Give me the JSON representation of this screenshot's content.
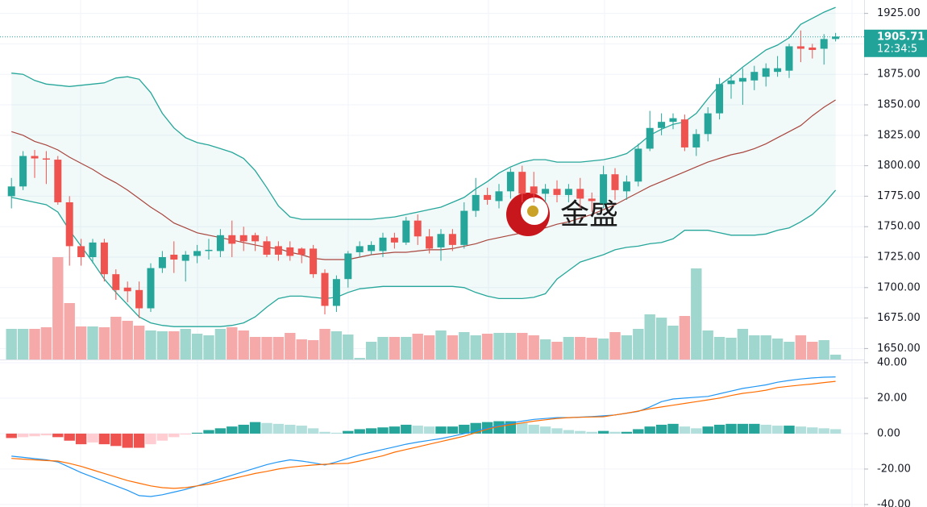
{
  "chart_data": {
    "type": "candlestick",
    "watermark": "金盛",
    "up_color": "#26a69a",
    "down_color": "#ef5350",
    "open": [
      1775,
      1783,
      1808,
      1806,
      1805,
      1770,
      1734,
      1725,
      1737,
      1711,
      1700,
      1698,
      1683,
      1716,
      1727,
      1722,
      1726,
      1730,
      1730,
      1743,
      1743,
      1743,
      1738,
      1734,
      1733,
      1732,
      1732,
      1712,
      1685,
      1707,
      1729,
      1730,
      1730,
      1741,
      1737,
      1755,
      1742,
      1733,
      1744,
      1735,
      1763,
      1776,
      1771,
      1779,
      1795,
      1783,
      1777,
      1781,
      1776,
      1781,
      1773,
      1769,
      1793,
      1779,
      1787,
      1814,
      1831,
      1836,
      1838,
      1815,
      1826,
      1843,
      1867,
      1869,
      1870,
      1873,
      1877,
      1878,
      1898,
      1897,
      1896,
      1904
    ],
    "high": [
      1790,
      1812,
      1813,
      1812,
      1808,
      1775,
      1740,
      1740,
      1740,
      1715,
      1705,
      1705,
      1720,
      1730,
      1738,
      1730,
      1735,
      1740,
      1748,
      1755,
      1750,
      1745,
      1742,
      1738,
      1738,
      1733,
      1735,
      1715,
      1710,
      1730,
      1738,
      1738,
      1745,
      1745,
      1758,
      1760,
      1748,
      1748,
      1748,
      1770,
      1790,
      1782,
      1785,
      1798,
      1800,
      1795,
      1785,
      1788,
      1785,
      1790,
      1778,
      1800,
      1798,
      1792,
      1818,
      1845,
      1843,
      1843,
      1842,
      1830,
      1848,
      1872,
      1875,
      1880,
      1882,
      1884,
      1890,
      1900,
      1911,
      1900,
      1908,
      1909
    ],
    "low": [
      1765,
      1780,
      1790,
      1785,
      1768,
      1718,
      1718,
      1720,
      1705,
      1690,
      1688,
      1675,
      1680,
      1712,
      1712,
      1705,
      1720,
      1723,
      1725,
      1725,
      1730,
      1730,
      1725,
      1722,
      1722,
      1720,
      1708,
      1678,
      1680,
      1700,
      1725,
      1727,
      1725,
      1732,
      1735,
      1735,
      1728,
      1722,
      1730,
      1732,
      1758,
      1768,
      1765,
      1773,
      1770,
      1770,
      1770,
      1770,
      1770,
      1765,
      1762,
      1765,
      1772,
      1772,
      1783,
      1812,
      1825,
      1830,
      1812,
      1808,
      1820,
      1838,
      1855,
      1850,
      1862,
      1865,
      1873,
      1872,
      1885,
      1888,
      1883,
      1902
    ],
    "close": [
      1783,
      1808,
      1806,
      1805,
      1770,
      1734,
      1725,
      1737,
      1711,
      1698,
      1697,
      1683,
      1716,
      1725,
      1723,
      1727,
      1730,
      1731,
      1743,
      1736,
      1738,
      1738,
      1727,
      1727,
      1726,
      1727,
      1711,
      1685,
      1707,
      1728,
      1734,
      1735,
      1741,
      1737,
      1755,
      1742,
      1732,
      1744,
      1735,
      1763,
      1776,
      1772,
      1779,
      1795,
      1777,
      1777,
      1781,
      1776,
      1781,
      1773,
      1771,
      1793,
      1780,
      1787,
      1814,
      1831,
      1836,
      1839,
      1815,
      1826,
      1843,
      1867,
      1870,
      1872,
      1877,
      1880,
      1880,
      1898,
      1896,
      1895,
      1904,
      1906
    ],
    "bands": {
      "color": "#26a69a",
      "middle_color": "#a8463e",
      "upper": [
        1876,
        1875,
        1870,
        1867,
        1866,
        1865,
        1866,
        1867,
        1868,
        1872,
        1873,
        1871,
        1860,
        1843,
        1831,
        1823,
        1819,
        1817,
        1814,
        1811,
        1806,
        1796,
        1782,
        1767,
        1758,
        1756,
        1756,
        1756,
        1756,
        1756,
        1756,
        1756,
        1757,
        1758,
        1760,
        1762,
        1764,
        1766,
        1770,
        1774,
        1781,
        1787,
        1794,
        1799,
        1803,
        1805,
        1805,
        1803,
        1803,
        1803,
        1804,
        1805,
        1807,
        1810,
        1817,
        1825,
        1830,
        1834,
        1836,
        1843,
        1855,
        1866,
        1873,
        1881,
        1888,
        1895,
        1899,
        1905,
        1916,
        1921,
        1926,
        1930
      ],
      "middle": [
        1828,
        1825,
        1820,
        1817,
        1813,
        1807,
        1802,
        1797,
        1791,
        1786,
        1780,
        1773,
        1766,
        1760,
        1753,
        1749,
        1745,
        1743,
        1741,
        1739,
        1737,
        1735,
        1733,
        1732,
        1729,
        1727,
        1724,
        1723,
        1723,
        1723,
        1725,
        1727,
        1728,
        1729,
        1729,
        1730,
        1731,
        1731,
        1732,
        1734,
        1736,
        1739,
        1741,
        1743,
        1745,
        1747,
        1749,
        1752,
        1754,
        1757,
        1760,
        1764,
        1768,
        1773,
        1778,
        1783,
        1787,
        1791,
        1795,
        1799,
        1803,
        1806,
        1809,
        1811,
        1814,
        1818,
        1823,
        1828,
        1833,
        1841,
        1848,
        1854
      ],
      "lower": [
        1774,
        1772,
        1770,
        1768,
        1762,
        1747,
        1734,
        1721,
        1707,
        1696,
        1686,
        1676,
        1671,
        1669,
        1668,
        1668,
        1668,
        1668,
        1668,
        1669,
        1671,
        1676,
        1684,
        1691,
        1693,
        1693,
        1692,
        1691,
        1692,
        1696,
        1699,
        1700,
        1701,
        1701,
        1701,
        1701,
        1701,
        1701,
        1701,
        1700,
        1696,
        1693,
        1691,
        1691,
        1691,
        1692,
        1695,
        1707,
        1714,
        1721,
        1724,
        1727,
        1731,
        1733,
        1734,
        1736,
        1737,
        1740,
        1747,
        1747,
        1747,
        1745,
        1743,
        1743,
        1743,
        1744,
        1747,
        1749,
        1754,
        1760,
        1769,
        1780
      ]
    },
    "volume": [
      38,
      38,
      38,
      40,
      127,
      70,
      41,
      41,
      40,
      53,
      48,
      42,
      36,
      35,
      35,
      38,
      32,
      30,
      38,
      40,
      36,
      28,
      28,
      28,
      33,
      25,
      24,
      38,
      35,
      31,
      2,
      22,
      28,
      28,
      28,
      32,
      30,
      36,
      30,
      34,
      30,
      32,
      33,
      33,
      33,
      30,
      25,
      22,
      28,
      28,
      27,
      26,
      34,
      30,
      38,
      56,
      52,
      42,
      54,
      113,
      36,
      28,
      27,
      38,
      30,
      30,
      26,
      22,
      30,
      22,
      24,
      6
    ],
    "volume_up_color": "#9fd7cf",
    "volume_down_color": "#f5a9a8",
    "ylim": [
      1641,
      1936
    ],
    "yticks": [
      {
        "value": 1925,
        "label": "1925.00"
      },
      {
        "value": 1900,
        "label": "1900.00"
      },
      {
        "value": 1875,
        "label": "1875.00"
      },
      {
        "value": 1850,
        "label": "1850.00"
      },
      {
        "value": 1825,
        "label": "1825.00"
      },
      {
        "value": 1800,
        "label": "1800.00"
      },
      {
        "value": 1775,
        "label": "1775.00"
      },
      {
        "value": 1750,
        "label": "1750.00"
      },
      {
        "value": 1725,
        "label": "1725.00"
      },
      {
        "value": 1700,
        "label": "1700.00"
      },
      {
        "value": 1675,
        "label": "1675.00"
      },
      {
        "value": 1650,
        "label": "1650.00"
      }
    ],
    "last_price": {
      "value": 1905.71,
      "time": "12:34:5",
      "color": "#22a39a"
    },
    "macd": {
      "macd_color": "#2196f3",
      "signal_color": "#ff6d00",
      "ylim": [
        -41.4,
        41.8
      ],
      "yticks": [
        {
          "value": 40,
          "label": "40.00"
        },
        {
          "value": 20,
          "label": "20.00"
        },
        {
          "value": 0,
          "label": "0.00"
        },
        {
          "value": -20,
          "label": "-20.00"
        },
        {
          "value": -40,
          "label": "-40.00"
        }
      ],
      "histogram": [
        -2.5,
        -2,
        -1.5,
        -1,
        -2,
        -4,
        -6,
        -5,
        -6,
        -7,
        -8,
        -8,
        -6,
        -4,
        -2,
        -0.5,
        0.5,
        2,
        3,
        4,
        5,
        6.5,
        6,
        5.5,
        5,
        4.5,
        3,
        1,
        0.5,
        1.5,
        2.5,
        3,
        3.5,
        4,
        5,
        4.5,
        4,
        4,
        4,
        5,
        6,
        6.5,
        7,
        7,
        6,
        5,
        4,
        3,
        2,
        1.5,
        1,
        1.5,
        1,
        1,
        2.5,
        4,
        5,
        5.5,
        4,
        3,
        4,
        5,
        5.5,
        5.5,
        5.5,
        5,
        4.5,
        4.5,
        4,
        3.5,
        3,
        2.5
      ],
      "macd": [
        -12.7,
        -13.4,
        -14.1,
        -14.8,
        -16,
        -19,
        -22,
        -24.5,
        -27,
        -29.5,
        -32,
        -35,
        -35.5,
        -34.5,
        -33,
        -31.5,
        -29.5,
        -27.5,
        -25.5,
        -23.5,
        -21.5,
        -19.5,
        -17.5,
        -16,
        -14.8,
        -15.5,
        -16.5,
        -17.7,
        -16,
        -14,
        -12,
        -10.5,
        -9,
        -7.5,
        -6,
        -4.8,
        -3.8,
        -2.8,
        -1.5,
        0,
        1.5,
        3,
        4.5,
        6,
        7,
        8,
        8.5,
        9,
        9,
        9.3,
        9.6,
        10,
        10.5,
        11.5,
        12.5,
        15,
        18,
        19.5,
        20,
        20.5,
        21,
        22.5,
        24,
        25.5,
        26.5,
        27.5,
        29,
        30,
        30.8,
        31.4,
        31.8,
        32
      ],
      "signal": [
        -14,
        -14.4,
        -14.8,
        -15.2,
        -15.5,
        -16.8,
        -18.5,
        -20.5,
        -22.5,
        -24.5,
        -26.5,
        -28,
        -29.5,
        -30.5,
        -30.9,
        -30.5,
        -29.5,
        -28.5,
        -27,
        -25.5,
        -24,
        -22.5,
        -21.3,
        -20,
        -19,
        -18.3,
        -17.7,
        -17.3,
        -17,
        -16.8,
        -15.5,
        -14,
        -12.5,
        -10.5,
        -9,
        -7.5,
        -6,
        -4.5,
        -3,
        -1.5,
        0.5,
        2.5,
        4,
        5,
        6,
        7,
        7.8,
        8.5,
        9,
        9.2,
        9.4,
        9.5,
        10.5,
        11.5,
        12.7,
        14,
        15,
        16,
        17,
        18,
        19,
        20,
        21.5,
        22.7,
        23.5,
        24.5,
        26,
        26.7,
        27.4,
        28,
        28.8,
        29.5
      ]
    }
  }
}
